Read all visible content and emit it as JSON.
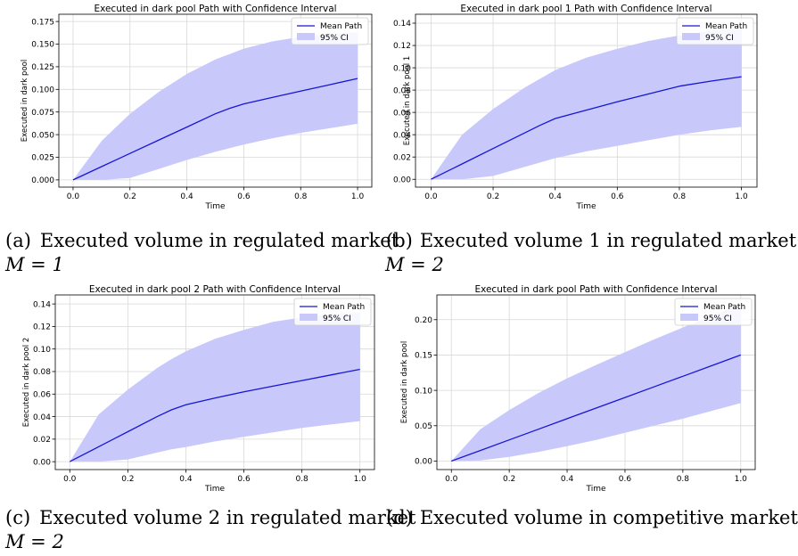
{
  "chart_data": [
    {
      "id": "a",
      "type": "area",
      "title": "Executed in dark pool Path with Confidence Interval",
      "xlabel": "Time",
      "ylabel": "Executed in dark pool",
      "xlim": [
        -0.05,
        1.05
      ],
      "ylim": [
        -0.008,
        0.183
      ],
      "xticks": [
        0.0,
        0.2,
        0.4,
        0.6,
        0.8,
        1.0
      ],
      "xtick_labels": [
        "0.0",
        "0.2",
        "0.4",
        "0.6",
        "0.8",
        "1.0"
      ],
      "yticks": [
        0.0,
        0.025,
        0.05,
        0.075,
        0.1,
        0.125,
        0.15,
        0.175
      ],
      "ytick_labels": [
        "0.000",
        "0.025",
        "0.050",
        "0.075",
        "0.100",
        "0.125",
        "0.150",
        "0.175"
      ],
      "grid": true,
      "legend": "top-right",
      "x": [
        0.0,
        0.1,
        0.2,
        0.3,
        0.4,
        0.5,
        0.55,
        0.6,
        0.7,
        0.8,
        0.9,
        1.0
      ],
      "series": [
        {
          "name": "Mean Path",
          "values": [
            0.0,
            0.0146,
            0.0292,
            0.0438,
            0.0584,
            0.073,
            0.079,
            0.084,
            0.091,
            0.098,
            0.105,
            0.112
          ]
        },
        {
          "name": "95% CI",
          "lower": [
            0.0,
            0.0,
            0.002,
            0.012,
            0.022,
            0.031,
            0.035,
            0.039,
            0.046,
            0.052,
            0.057,
            0.062
          ],
          "upper": [
            0.0,
            0.043,
            0.073,
            0.097,
            0.117,
            0.133,
            0.139,
            0.145,
            0.153,
            0.158,
            0.161,
            0.163
          ]
        }
      ],
      "colors": {
        "line": "#1616d6",
        "band": "#c8c8fb"
      }
    },
    {
      "id": "b",
      "type": "area",
      "title": "Executed in dark pool 1 Path with Confidence Interval",
      "xlabel": "Time",
      "ylabel": "Executed in dark pool 1",
      "xlim": [
        -0.05,
        1.05
      ],
      "ylim": [
        -0.007,
        0.148
      ],
      "xticks": [
        0.0,
        0.2,
        0.4,
        0.6,
        0.8,
        1.0
      ],
      "xtick_labels": [
        "0.0",
        "0.2",
        "0.4",
        "0.6",
        "0.8",
        "1.0"
      ],
      "yticks": [
        0.0,
        0.02,
        0.04,
        0.06,
        0.08,
        0.1,
        0.12,
        0.14
      ],
      "ytick_labels": [
        "0.00",
        "0.02",
        "0.04",
        "0.06",
        "0.08",
        "0.10",
        "0.12",
        "0.14"
      ],
      "grid": true,
      "legend": "top-right",
      "x": [
        0.0,
        0.1,
        0.2,
        0.3,
        0.35,
        0.4,
        0.5,
        0.6,
        0.7,
        0.8,
        0.9,
        1.0
      ],
      "series": [
        {
          "name": "Mean Path",
          "values": [
            0.0,
            0.0138,
            0.0276,
            0.0414,
            0.0483,
            0.0545,
            0.062,
            0.0695,
            0.0765,
            0.0835,
            0.088,
            0.092
          ]
        },
        {
          "name": "95% CI",
          "lower": [
            0.0,
            0.0,
            0.003,
            0.011,
            0.015,
            0.019,
            0.025,
            0.03,
            0.035,
            0.04,
            0.044,
            0.047
          ],
          "upper": [
            0.0,
            0.04,
            0.063,
            0.082,
            0.09,
            0.098,
            0.109,
            0.117,
            0.124,
            0.129,
            0.133,
            0.135
          ]
        }
      ],
      "colors": {
        "line": "#1616d6",
        "band": "#c8c8fb"
      }
    },
    {
      "id": "c",
      "type": "area",
      "title": "Executed in dark pool 2 Path with Confidence Interval",
      "xlabel": "Time",
      "ylabel": "Executed in dark pool 2",
      "xlim": [
        -0.05,
        1.05
      ],
      "ylim": [
        -0.007,
        0.148
      ],
      "xticks": [
        0.0,
        0.2,
        0.4,
        0.6,
        0.8,
        1.0
      ],
      "xtick_labels": [
        "0.0",
        "0.2",
        "0.4",
        "0.6",
        "0.8",
        "1.0"
      ],
      "yticks": [
        0.0,
        0.02,
        0.04,
        0.06,
        0.08,
        0.1,
        0.12,
        0.14
      ],
      "ytick_labels": [
        "0.00",
        "0.02",
        "0.04",
        "0.06",
        "0.08",
        "0.10",
        "0.12",
        "0.14"
      ],
      "grid": true,
      "legend": "top-right",
      "x": [
        0.0,
        0.1,
        0.2,
        0.3,
        0.35,
        0.4,
        0.5,
        0.6,
        0.7,
        0.8,
        0.9,
        1.0
      ],
      "series": [
        {
          "name": "Mean Path",
          "values": [
            0.0,
            0.0133,
            0.0266,
            0.0399,
            0.046,
            0.0505,
            0.0565,
            0.062,
            0.067,
            0.072,
            0.077,
            0.082
          ]
        },
        {
          "name": "95% CI",
          "lower": [
            0.0,
            0.0,
            0.002,
            0.008,
            0.011,
            0.013,
            0.018,
            0.022,
            0.026,
            0.03,
            0.033,
            0.036
          ],
          "upper": [
            0.0,
            0.042,
            0.064,
            0.083,
            0.091,
            0.098,
            0.109,
            0.117,
            0.124,
            0.128,
            0.131,
            0.132
          ]
        }
      ],
      "colors": {
        "line": "#1616d6",
        "band": "#c8c8fb"
      }
    },
    {
      "id": "d",
      "type": "area",
      "title": "Executed in dark pool Path with Confidence Interval",
      "xlabel": "Time",
      "ylabel": "Executed in dark pool",
      "xlim": [
        -0.05,
        1.05
      ],
      "ylim": [
        -0.012,
        0.235
      ],
      "xticks": [
        0.0,
        0.2,
        0.4,
        0.6,
        0.8,
        1.0
      ],
      "xtick_labels": [
        "0.0",
        "0.2",
        "0.4",
        "0.6",
        "0.8",
        "1.0"
      ],
      "yticks": [
        0.0,
        0.05,
        0.1,
        0.15,
        0.2
      ],
      "ytick_labels": [
        "0.00",
        "0.05",
        "0.10",
        "0.15",
        "0.20"
      ],
      "grid": true,
      "legend": "top-right",
      "x": [
        0.0,
        0.1,
        0.2,
        0.3,
        0.4,
        0.5,
        0.6,
        0.7,
        0.8,
        0.9,
        1.0
      ],
      "series": [
        {
          "name": "Mean Path",
          "values": [
            0.0,
            0.015,
            0.03,
            0.045,
            0.06,
            0.075,
            0.09,
            0.105,
            0.12,
            0.135,
            0.15
          ]
        },
        {
          "name": "95% CI",
          "lower": [
            0.0,
            0.001,
            0.006,
            0.013,
            0.021,
            0.03,
            0.04,
            0.05,
            0.06,
            0.071,
            0.082
          ],
          "upper": [
            0.0,
            0.045,
            0.072,
            0.096,
            0.117,
            0.136,
            0.154,
            0.172,
            0.189,
            0.205,
            0.222
          ]
        }
      ],
      "colors": {
        "line": "#1616d6",
        "band": "#c8c8fb"
      }
    }
  ],
  "captions": [
    {
      "label": "(a)",
      "text": "Executed volume in regulated market",
      "math": "M = 1"
    },
    {
      "label": "(b)",
      "text": "Executed volume 1 in regulated market",
      "math": "M = 2"
    },
    {
      "label": "(c)",
      "text": "Executed volume 2 in regulated market",
      "math": "M = 2"
    },
    {
      "label": "(d)",
      "text": "Executed volume in competitive market",
      "math": ""
    }
  ]
}
